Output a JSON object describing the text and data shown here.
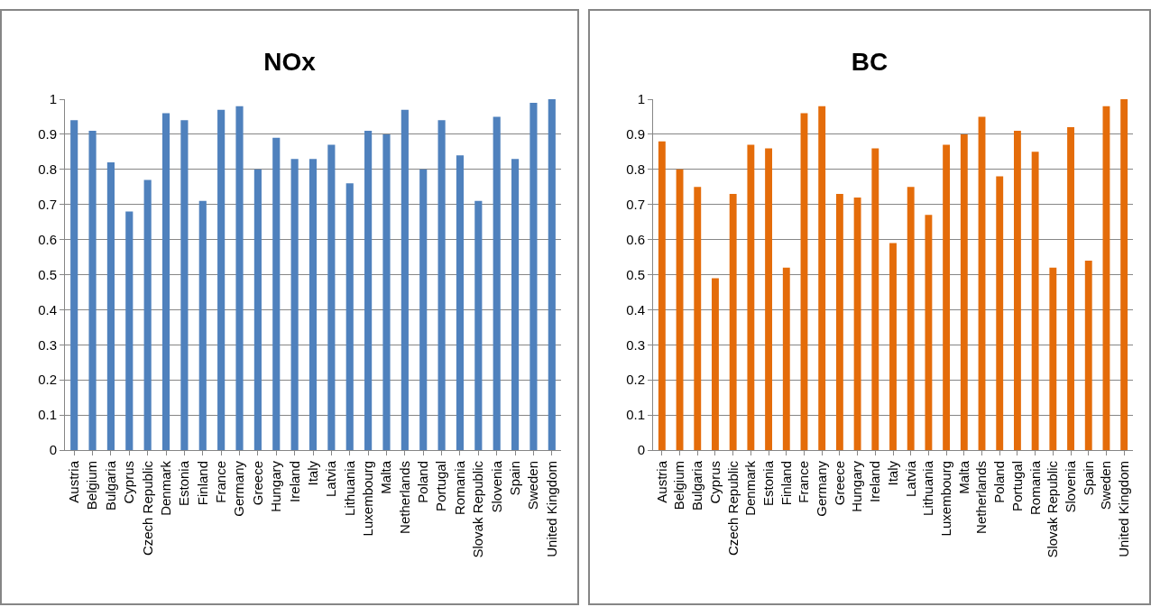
{
  "chart_data": [
    {
      "type": "bar",
      "title": "NOx",
      "categories": [
        "Austria",
        "Belgium",
        "Bulgaria",
        "Cyprus",
        "Czech Republic",
        "Denmark",
        "Estonia",
        "Finland",
        "France",
        "Germany",
        "Greece",
        "Hungary",
        "Ireland",
        "Italy",
        "Latvia",
        "Lithuania",
        "Luxembourg",
        "Malta",
        "Netherlands",
        "Poland",
        "Portugal",
        "Romania",
        "Slovak Republic",
        "Slovenia",
        "Spain",
        "Sweden",
        "United Kingdom"
      ],
      "series": [
        {
          "color": "#4f81bd",
          "values": [
            0.94,
            0.91,
            0.82,
            0.68,
            0.77,
            0.96,
            0.94,
            0.71,
            0.97,
            0.98,
            0.8,
            0.89,
            0.83,
            0.83,
            0.87,
            0.76,
            0.91,
            0.9,
            0.97,
            0.8,
            0.94,
            0.84,
            0.71,
            0.95,
            0.83,
            0.99,
            1.0
          ]
        }
      ],
      "ylim": [
        0,
        1
      ],
      "yticks": [
        0,
        0.1,
        0.2,
        0.3,
        0.4,
        0.5,
        0.6,
        0.7,
        0.8,
        0.9,
        1
      ],
      "grid": "y",
      "legend": false
    },
    {
      "type": "bar",
      "title": "BC",
      "categories": [
        "Austria",
        "Belgium",
        "Bulgaria",
        "Cyprus",
        "Czech Republic",
        "Denmark",
        "Estonia",
        "Finland",
        "France",
        "Germany",
        "Greece",
        "Hungary",
        "Ireland",
        "Italy",
        "Latvia",
        "Lithuania",
        "Luxembourg",
        "Malta",
        "Netherlands",
        "Poland",
        "Portugal",
        "Romania",
        "Slovak Republic",
        "Slovenia",
        "Spain",
        "Sweden",
        "United Kingdom"
      ],
      "series": [
        {
          "color": "#e46c0a",
          "values": [
            0.88,
            0.8,
            0.75,
            0.49,
            0.73,
            0.87,
            0.86,
            0.52,
            0.96,
            0.98,
            0.73,
            0.72,
            0.86,
            0.59,
            0.75,
            0.67,
            0.87,
            0.9,
            0.95,
            0.78,
            0.91,
            0.85,
            0.52,
            0.92,
            0.54,
            0.98,
            1.0
          ]
        }
      ],
      "ylim": [
        0,
        1
      ],
      "yticks": [
        0,
        0.1,
        0.2,
        0.3,
        0.4,
        0.5,
        0.6,
        0.7,
        0.8,
        0.9,
        1
      ],
      "grid": "y",
      "legend": false
    }
  ]
}
